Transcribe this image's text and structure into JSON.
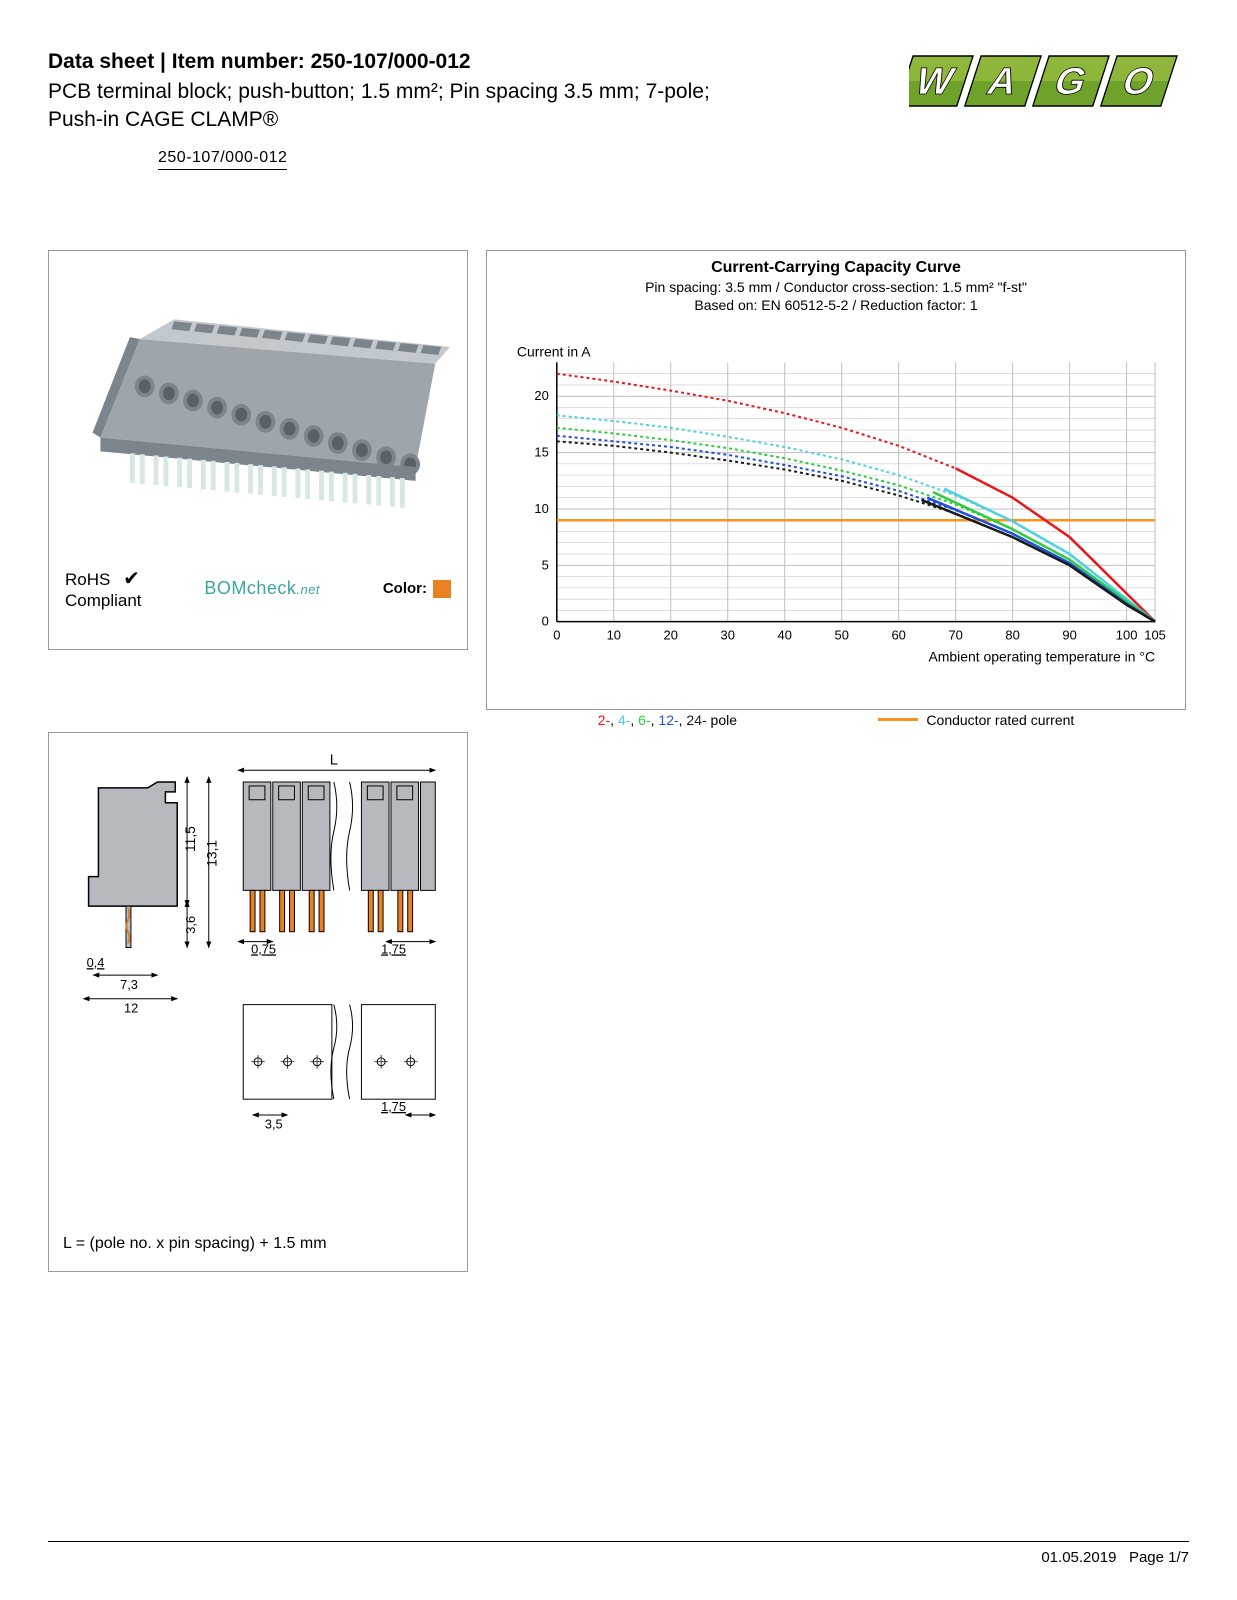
{
  "header": {
    "line1_prefix": "Data sheet",
    "line1_sep": "  |  ",
    "line1_label": "Item number: ",
    "item_number": "250-107/000-012",
    "description": "PCB terminal block; push-button; 1.5 mm²; Pin spacing 3.5 mm; 7-pole; Push-in CAGE CLAMP®"
  },
  "item_number_box": "250-107/000-012",
  "logo": {
    "text": "WAGO",
    "fill_top": "#8db63a",
    "fill_bottom": "#6ea22a",
    "outline": "#000000"
  },
  "product_panel": {
    "body_color": "#9ea5ab",
    "body_shadow": "#7c848c",
    "body_highlight": "#c3c8cd",
    "pin_color": "#d7e7e4",
    "rohs_label_1": "RoHS",
    "rohs_label_2": "Compliant",
    "check_color": "#000000",
    "bomcheck_text": "BOMcheck",
    "bomcheck_suffix": ".net",
    "bomcheck_color": "#3aa6a0",
    "color_label": "Color:",
    "swatch_color": "#e98120"
  },
  "chart": {
    "title": "Current-Carrying Capacity Curve",
    "sub1": "Pin spacing: 3.5 mm / Conductor cross-section: 1.5 mm² \"f-st\"",
    "sub2": "Based on: EN 60512-5-2 / Reduction factor: 1",
    "y_axis_label": "Current in A",
    "x_axis_label": "Ambient operating temperature in °C",
    "x_ticks": [
      0,
      10,
      20,
      30,
      40,
      50,
      60,
      70,
      80,
      90,
      100,
      105
    ],
    "y_ticks": [
      0,
      5,
      10,
      15,
      20
    ],
    "y_max": 23,
    "grid_color": "#bfbfbf",
    "axis_color": "#000000",
    "rated_current": {
      "value": 9,
      "color": "#f7931e",
      "label": "Conductor rated current"
    },
    "series": [
      {
        "name": "2-pole",
        "color": "#e81717",
        "dash": "3 3",
        "points": [
          [
            0,
            22
          ],
          [
            10,
            21.3
          ],
          [
            20,
            20.5
          ],
          [
            30,
            19.6
          ],
          [
            40,
            18.5
          ],
          [
            50,
            17.2
          ],
          [
            60,
            15.6
          ],
          [
            70,
            13.6
          ],
          [
            80,
            11.0
          ],
          [
            90,
            7.5
          ],
          [
            100,
            2.5
          ],
          [
            105,
            0
          ]
        ]
      },
      {
        "name": "4-pole",
        "color": "#4dd0e1",
        "dash": "3 3",
        "points": [
          [
            0,
            18.3
          ],
          [
            10,
            17.8
          ],
          [
            20,
            17.2
          ],
          [
            30,
            16.4
          ],
          [
            40,
            15.5
          ],
          [
            50,
            14.4
          ],
          [
            60,
            13.0
          ],
          [
            70,
            11.2
          ],
          [
            80,
            8.9
          ],
          [
            90,
            6.0
          ],
          [
            100,
            2.0
          ],
          [
            105,
            0
          ]
        ]
      },
      {
        "name": "6-pole",
        "color": "#2ecc40",
        "dash": "3 3",
        "points": [
          [
            0,
            17.2
          ],
          [
            10,
            16.7
          ],
          [
            20,
            16.1
          ],
          [
            30,
            15.4
          ],
          [
            40,
            14.5
          ],
          [
            50,
            13.4
          ],
          [
            60,
            12.1
          ],
          [
            70,
            10.4
          ],
          [
            80,
            8.2
          ],
          [
            90,
            5.5
          ],
          [
            100,
            1.8
          ],
          [
            105,
            0
          ]
        ]
      },
      {
        "name": "12-pole",
        "color": "#1f4fd6",
        "dash": "3 3",
        "points": [
          [
            0,
            16.5
          ],
          [
            10,
            16.0
          ],
          [
            20,
            15.5
          ],
          [
            30,
            14.8
          ],
          [
            40,
            13.9
          ],
          [
            50,
            12.9
          ],
          [
            60,
            11.6
          ],
          [
            70,
            9.9
          ],
          [
            80,
            7.8
          ],
          [
            90,
            5.2
          ],
          [
            100,
            1.6
          ],
          [
            105,
            0
          ]
        ]
      },
      {
        "name": "24-pole",
        "color": "#1a1a1a",
        "dash": "3 3",
        "points": [
          [
            0,
            16.0
          ],
          [
            10,
            15.6
          ],
          [
            20,
            15.0
          ],
          [
            30,
            14.3
          ],
          [
            40,
            13.5
          ],
          [
            50,
            12.5
          ],
          [
            60,
            11.2
          ],
          [
            70,
            9.6
          ],
          [
            80,
            7.5
          ],
          [
            90,
            5.0
          ],
          [
            100,
            1.5
          ],
          [
            105,
            0
          ]
        ]
      }
    ],
    "solid_series": [
      {
        "name": "2-pole-solid",
        "color": "#e81717",
        "points": [
          [
            70,
            13.6
          ],
          [
            80,
            11.0
          ],
          [
            90,
            7.5
          ],
          [
            100,
            2.5
          ],
          [
            105,
            0
          ]
        ]
      },
      {
        "name": "4-pole-solid",
        "color": "#4dd0e1",
        "points": [
          [
            68,
            11.8
          ],
          [
            80,
            8.9
          ],
          [
            90,
            6.0
          ],
          [
            100,
            2.0
          ],
          [
            105,
            0
          ]
        ]
      },
      {
        "name": "6-pole-solid",
        "color": "#2ecc40",
        "points": [
          [
            66,
            11.5
          ],
          [
            80,
            8.2
          ],
          [
            90,
            5.5
          ],
          [
            100,
            1.8
          ],
          [
            105,
            0
          ]
        ]
      },
      {
        "name": "12-pole-solid",
        "color": "#1f4fd6",
        "points": [
          [
            65,
            11.0
          ],
          [
            80,
            7.8
          ],
          [
            90,
            5.2
          ],
          [
            100,
            1.6
          ],
          [
            105,
            0
          ]
        ]
      },
      {
        "name": "24-pole-solid",
        "color": "#1a1a1a",
        "points": [
          [
            64,
            10.8
          ],
          [
            80,
            7.5
          ],
          [
            90,
            5.0
          ],
          [
            100,
            1.5
          ],
          [
            105,
            0
          ]
        ]
      }
    ],
    "legend_poles": [
      {
        "label": "2-",
        "color": "#e81717"
      },
      {
        "label": "4-",
        "color": "#4dd0e1"
      },
      {
        "label": "6-",
        "color": "#2ecc40"
      },
      {
        "label": "12-",
        "color": "#1f4fd6"
      },
      {
        "label": "24-",
        "color": "#1a1a1a"
      }
    ],
    "legend_pole_suffix": " pole"
  },
  "diagram": {
    "body_fill": "#b6b9bd",
    "body_stroke": "#000000",
    "pin_fill": "#e98120",
    "dims": {
      "h_total": "13,1",
      "h_body": "11,5",
      "h_base": "3,6",
      "pin_t": "0,4",
      "pin_gap": "7,3",
      "width": "12",
      "L_label": "L",
      "front_pitch_left": "0,75",
      "front_pitch_right": "1,75",
      "footprint_pitch": "3,5",
      "footprint_right": "1,75"
    },
    "formula": "L = (pole no. x pin spacing) + 1.5 mm"
  },
  "footer": {
    "date": "01.05.2019",
    "page": "Page 1/7"
  }
}
